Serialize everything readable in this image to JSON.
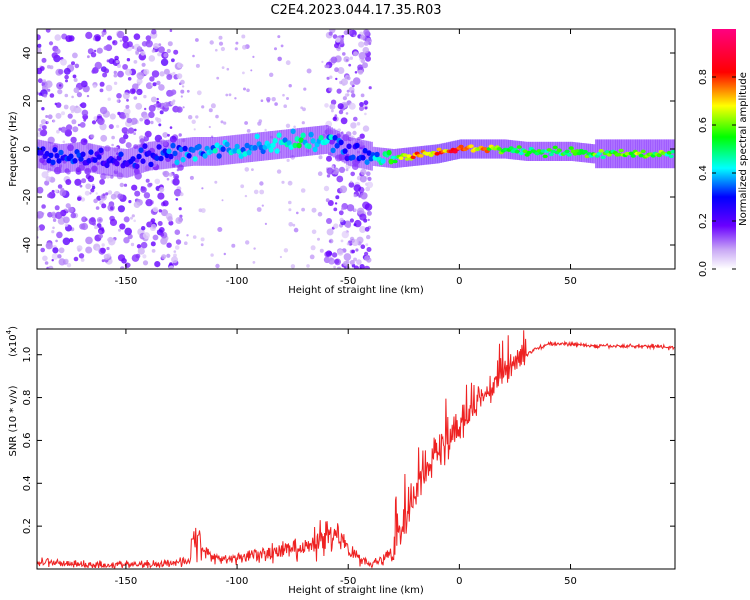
{
  "title": "C2E4.2023.044.17.35.R03",
  "chart_data": [
    {
      "type": "heatmap",
      "xlabel": "Height of straight line (km)",
      "ylabel": "Frequency (Hz)",
      "xlim": [
        -190,
        97
      ],
      "ylim": [
        -50,
        50
      ],
      "xticks": [
        -150,
        -100,
        -50,
        0,
        50
      ],
      "yticks": [
        -40,
        -20,
        0,
        20,
        40
      ],
      "colorbar": {
        "label": "Normalized spectral amplitude",
        "range": [
          0,
          1
        ],
        "ticks": [
          0.0,
          0.2,
          0.4,
          0.6,
          0.8
        ],
        "tick_labels": [
          "0.0",
          "0.2",
          "0.4",
          "0.6",
          "0.8"
        ],
        "colormap": "rainbow (white-purple-blue-cyan-green-yellow-red-magenta)"
      },
      "ridge": {
        "x": [
          -190,
          -180,
          -170,
          -160,
          -150,
          -140,
          -130,
          -120,
          -110,
          -100,
          -90,
          -80,
          -70,
          -60,
          -50,
          -40,
          -30,
          -20,
          -10,
          0,
          10,
          20,
          30,
          40,
          50,
          60,
          70,
          80,
          90,
          97
        ],
        "y": [
          -2,
          -4,
          -3,
          -5,
          -6,
          -3,
          -2,
          -1,
          -1,
          0,
          1,
          2,
          3,
          4,
          -1,
          -3,
          -4,
          -3,
          -2,
          0,
          0,
          0,
          -1,
          -1,
          -1,
          -2,
          -2,
          -2,
          -2,
          -2
        ],
        "amplitude": [
          0.3,
          0.35,
          0.3,
          0.25,
          0.3,
          0.3,
          0.35,
          0.4,
          0.42,
          0.42,
          0.45,
          0.45,
          0.5,
          0.45,
          0.3,
          0.35,
          0.55,
          0.75,
          0.8,
          0.85,
          0.75,
          0.6,
          0.55,
          0.55,
          0.55,
          0.58,
          0.6,
          0.62,
          0.6,
          0.55
        ]
      },
      "scatter_bands_x": [
        [
          -190,
          -125
        ],
        [
          -60,
          -40
        ]
      ]
    },
    {
      "type": "line",
      "xlabel": "Height of straight line (km)",
      "ylabel": "SNR (10 * v/v)",
      "scale_label": "(x10",
      "scale_exponent": "4",
      "scale_suffix": ")",
      "xlim": [
        -190,
        97
      ],
      "ylim": [
        0,
        1.12
      ],
      "xticks": [
        -150,
        -100,
        -50,
        0,
        50
      ],
      "yticks": [
        0.2,
        0.4,
        0.6,
        0.8,
        1.0
      ],
      "ytick_labels": [
        "0.2",
        "0.4",
        "0.6",
        "0.8",
        "1.0"
      ],
      "color": "#ee2222",
      "series": [
        {
          "x": [
            -190,
            -180,
            -170,
            -160,
            -150,
            -140,
            -130,
            -121,
            -120,
            -110,
            -100,
            -90,
            -80,
            -70,
            -65,
            -60,
            -55,
            -50,
            -45,
            -40,
            -35,
            -30,
            -25,
            -20,
            -15,
            -10,
            -5,
            0,
            5,
            10,
            15,
            20,
            25,
            30,
            35,
            40,
            50,
            60,
            70,
            80,
            90,
            97
          ],
          "y": [
            0.03,
            0.03,
            0.02,
            0.02,
            0.02,
            0.02,
            0.03,
            0.04,
            0.14,
            0.05,
            0.05,
            0.07,
            0.08,
            0.09,
            0.12,
            0.17,
            0.15,
            0.1,
            0.05,
            0.03,
            0.04,
            0.08,
            0.22,
            0.35,
            0.45,
            0.55,
            0.6,
            0.66,
            0.72,
            0.8,
            0.87,
            0.92,
            0.97,
            1.0,
            1.03,
            1.05,
            1.05,
            1.04,
            1.04,
            1.04,
            1.04,
            1.03
          ]
        }
      ]
    }
  ]
}
